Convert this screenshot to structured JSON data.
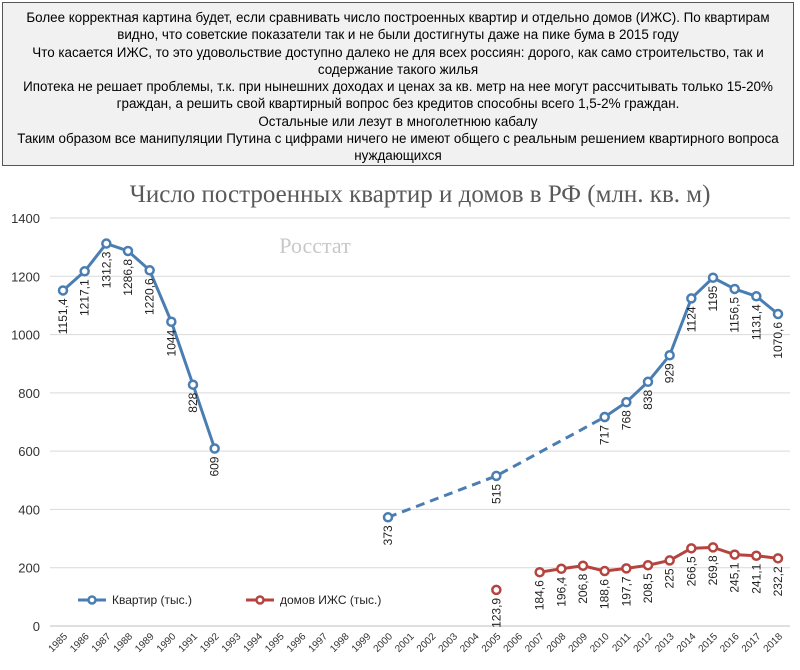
{
  "caption": {
    "lines": [
      "Более корректная картина будет, если сравнивать число построенных квартир и отдельно домов (ИЖС). По квартирам видно, что советские показатели так и не были достигнуты даже на пике бума в 2015 году",
      "Что касается ИЖС, то это удовольствие доступно далеко не для всех россиян: дорого, как само строительство, так и содержание такого жилья",
      "Ипотека не решает проблемы, т.к. при нынешних доходах и ценах за кв. метр на нее могут рассчитывать только 15-20% граждан, а решить свой квартирный вопрос без кредитов способны всего 1,5-2% граждан.",
      "Остальные или лезут в многолетнюю кабалу",
      "Таким образом все манипуляции Путина с цифрами ничего не имеют общего с реальным решением квартирного вопроса нуждающихся"
    ]
  },
  "colors": {
    "apartments": "#4a7eb3",
    "houses": "#b5443f",
    "grid": "#d9d9d9",
    "title": "#595959",
    "watermark": "#c8c8c8"
  },
  "chart_data": {
    "type": "line",
    "title": "Число построенных квартир и домов в РФ (млн. кв. м)",
    "watermark": "Росстат",
    "ylim": [
      0,
      1400
    ],
    "yticks": [
      0,
      200,
      400,
      600,
      800,
      1000,
      1200,
      1400
    ],
    "categories": [
      "1985",
      "1986",
      "1987",
      "1988",
      "1989",
      "1990",
      "1991",
      "1992",
      "1993",
      "1994",
      "1995",
      "1996",
      "1997",
      "1998",
      "1999",
      "2000",
      "2001",
      "2002",
      "2003",
      "2004",
      "2005",
      "2006",
      "2007",
      "2008",
      "2009",
      "2010",
      "2011",
      "2012",
      "2013",
      "2014",
      "2015",
      "2016",
      "2017",
      "2018"
    ],
    "legend_position": "bottom-left",
    "series": [
      {
        "name": "Квартир (тыс.)",
        "color_key": "apartments",
        "segments": [
          {
            "style": "solid",
            "points": [
              {
                "x": "1985",
                "y": 1151.4,
                "label": "1151,4"
              },
              {
                "x": "1986",
                "y": 1217.1,
                "label": "1217,1"
              },
              {
                "x": "1987",
                "y": 1312.3,
                "label": "1312,3"
              },
              {
                "x": "1988",
                "y": 1286.8,
                "label": "1286,8"
              },
              {
                "x": "1989",
                "y": 1220.6,
                "label": "1220,6"
              },
              {
                "x": "1990",
                "y": 1044,
                "label": "1044"
              },
              {
                "x": "1991",
                "y": 828,
                "label": "828"
              },
              {
                "x": "1992",
                "y": 609,
                "label": "609"
              }
            ]
          },
          {
            "style": "dashed",
            "points": [
              {
                "x": "2000",
                "y": 373,
                "label": "373"
              },
              {
                "x": "2005",
                "y": 515,
                "label": "515"
              },
              {
                "x": "2010",
                "y": 717,
                "label": "717"
              }
            ]
          },
          {
            "style": "solid",
            "points": [
              {
                "x": "2010",
                "y": 717
              },
              {
                "x": "2011",
                "y": 768,
                "label": "768"
              },
              {
                "x": "2012",
                "y": 838,
                "label": "838"
              },
              {
                "x": "2013",
                "y": 929,
                "label": "929"
              },
              {
                "x": "2014",
                "y": 1124,
                "label": "1124"
              },
              {
                "x": "2015",
                "y": 1195,
                "label": "1195"
              },
              {
                "x": "2016",
                "y": 1156.5,
                "label": "1156,5"
              },
              {
                "x": "2017",
                "y": 1131.4,
                "label": "1131,4"
              },
              {
                "x": "2018",
                "y": 1070.6,
                "label": "1070,6"
              }
            ]
          }
        ]
      },
      {
        "name": "домов ИЖС (тыс.)",
        "color_key": "houses",
        "segments": [
          {
            "style": "points",
            "points": [
              {
                "x": "2005",
                "y": 123.9,
                "label": "123,9"
              }
            ]
          },
          {
            "style": "solid",
            "points": [
              {
                "x": "2007",
                "y": 184.6,
                "label": "184,6"
              },
              {
                "x": "2008",
                "y": 196.4,
                "label": "196,4"
              },
              {
                "x": "2009",
                "y": 206.8,
                "label": "206,8"
              },
              {
                "x": "2010",
                "y": 188.6,
                "label": "188,6"
              },
              {
                "x": "2011",
                "y": 197.7,
                "label": "197,7"
              },
              {
                "x": "2012",
                "y": 208.5,
                "label": "208,5"
              },
              {
                "x": "2013",
                "y": 225,
                "label": "225"
              },
              {
                "x": "2014",
                "y": 266.5,
                "label": "266,5"
              },
              {
                "x": "2015",
                "y": 269.8,
                "label": "269,8"
              },
              {
                "x": "2016",
                "y": 245.1,
                "label": "245,1"
              },
              {
                "x": "2017",
                "y": 241.1,
                "label": "241,1"
              },
              {
                "x": "2018",
                "y": 232.2,
                "label": "232,2"
              }
            ]
          }
        ]
      }
    ]
  }
}
